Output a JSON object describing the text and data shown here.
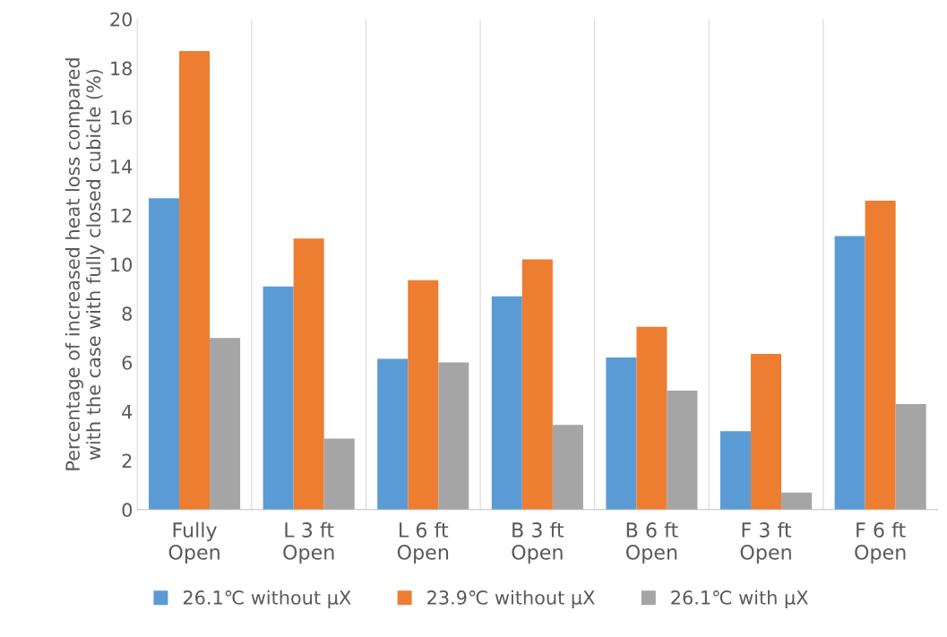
{
  "chart_data": {
    "type": "bar",
    "ylabel": "Percentage of increased heat loss compared\nwith the case with fully closed cubicle (%)",
    "categories": [
      "Fully\nOpen",
      "L 3 ft\nOpen",
      "L 6 ft\nOpen",
      "B 3 ft\nOpen",
      "B 6 ft\nOpen",
      "F 3 ft\nOpen",
      "F 6 ft\nOpen"
    ],
    "series": [
      {
        "name": "26.1℃ without µX",
        "color": "#5b9bd5",
        "values": [
          12.7,
          9.1,
          6.15,
          8.7,
          6.2,
          3.2,
          11.15
        ]
      },
      {
        "name": "23.9℃ without µX",
        "color": "#ed7d31",
        "values": [
          18.7,
          11.05,
          9.35,
          10.2,
          7.45,
          6.35,
          12.6
        ]
      },
      {
        "name": "26.1℃ with µX",
        "color": "#a5a5a5",
        "values": [
          7.0,
          2.9,
          6.0,
          3.45,
          4.85,
          0.7,
          4.3
        ]
      }
    ],
    "ylim": [
      0,
      20
    ],
    "yticks": [
      0,
      2,
      4,
      6,
      8,
      10,
      12,
      14,
      16,
      18,
      20
    ],
    "grid": "x",
    "legend": "bottom"
  }
}
